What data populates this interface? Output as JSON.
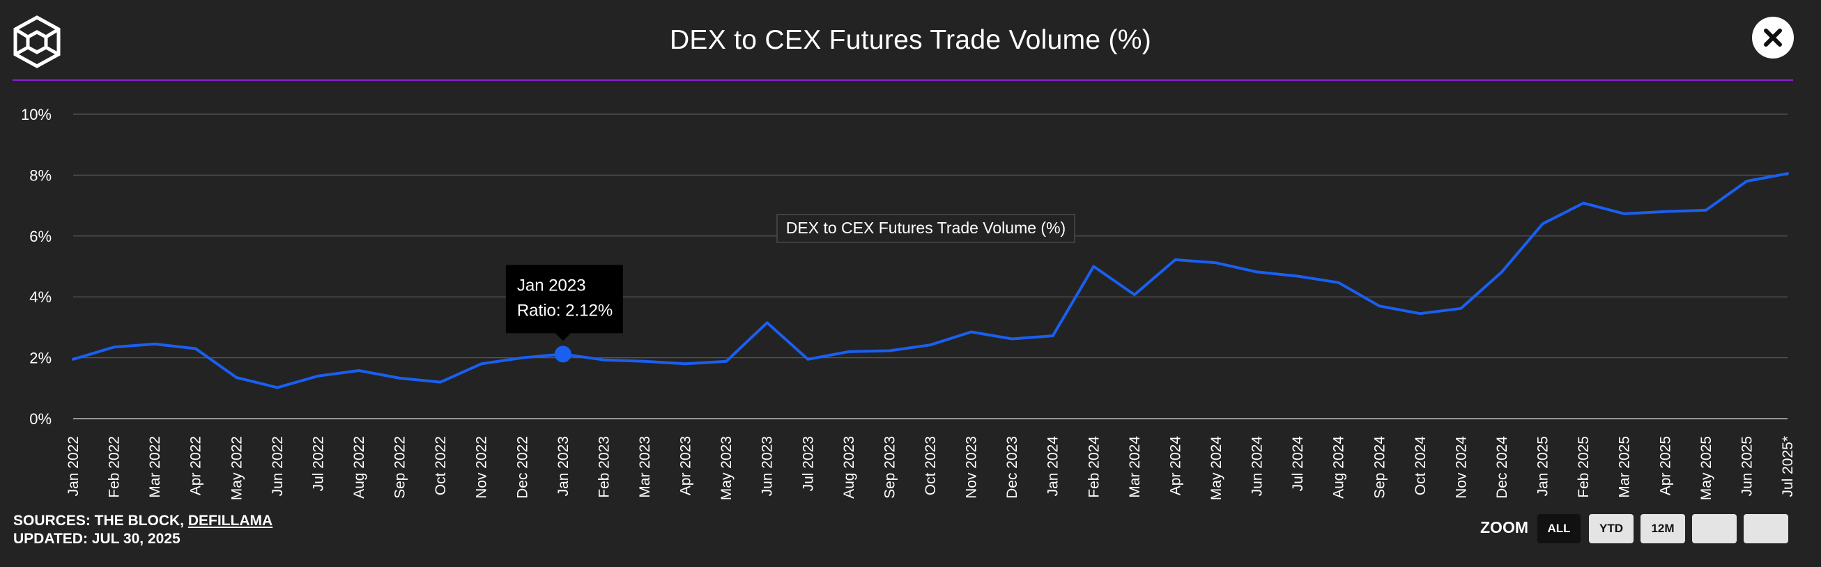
{
  "header": {
    "title": "DEX to CEX Futures Trade Volume (%)",
    "logo_icon": "the-block-cube-logo",
    "close_icon": "close-icon"
  },
  "colors": {
    "background": "#232323",
    "line": "#1a5ff0",
    "divider": "#8a1fd6",
    "grid": "#5a5a5a",
    "text": "#ffffff"
  },
  "chart_data": {
    "type": "line",
    "categories": [
      "Jan 2022",
      "Feb 2022",
      "Mar 2022",
      "Apr 2022",
      "May 2022",
      "Jun 2022",
      "Jul 2022",
      "Aug 2022",
      "Sep 2022",
      "Oct 2022",
      "Nov 2022",
      "Dec 2022",
      "Jan 2023",
      "Feb 2023",
      "Mar 2023",
      "Apr 2023",
      "May 2023",
      "Jun 2023",
      "Jul 2023",
      "Aug 2023",
      "Sep 2023",
      "Oct 2023",
      "Nov 2023",
      "Dec 2023",
      "Jan 2024",
      "Feb 2024",
      "Mar 2024",
      "Apr 2024",
      "May 2024",
      "Jun 2024",
      "Jul 2024",
      "Aug 2024",
      "Sep 2024",
      "Oct 2024",
      "Nov 2024",
      "Dec 2024",
      "Jan 2025",
      "Feb 2025",
      "Mar 2025",
      "Apr 2025",
      "May 2025",
      "Jun 2025",
      "Jul 2025*"
    ],
    "series": [
      {
        "name": "DEX to CEX Futures Trade Volume (%)",
        "values": [
          1.95,
          2.35,
          2.45,
          2.3,
          1.35,
          1.02,
          1.4,
          1.58,
          1.33,
          1.2,
          1.8,
          2.0,
          2.12,
          1.93,
          1.88,
          1.8,
          1.88,
          3.15,
          1.95,
          2.2,
          2.23,
          2.42,
          2.85,
          2.62,
          2.72,
          5.0,
          4.07,
          5.22,
          5.12,
          4.82,
          4.68,
          4.47,
          3.7,
          3.45,
          3.62,
          4.82,
          6.4,
          7.08,
          6.73,
          6.8,
          6.85,
          7.8,
          8.05
        ]
      }
    ],
    "ylim": [
      0,
      10
    ],
    "yticks": [
      0,
      2,
      4,
      6,
      8,
      10
    ],
    "ytick_labels": [
      "0%",
      "2%",
      "4%",
      "6%",
      "8%",
      "10%"
    ],
    "grid": true,
    "legend": "DEX to CEX Futures Trade Volume (%)",
    "tooltip": {
      "index": 12,
      "date": "Jan 2023",
      "text": "Ratio: 2.12%"
    }
  },
  "footer": {
    "sources_prefix": "SOURCES: THE BLOCK, ",
    "sources_link": "DEFILLAMA",
    "updated": "UPDATED: JUL 30, 2025"
  },
  "zoom": {
    "label": "ZOOM",
    "buttons": [
      {
        "label": "ALL",
        "active": true
      },
      {
        "label": "YTD",
        "active": false
      },
      {
        "label": "12M",
        "active": false
      },
      {
        "label": "",
        "active": false
      },
      {
        "label": "",
        "active": false
      }
    ]
  }
}
